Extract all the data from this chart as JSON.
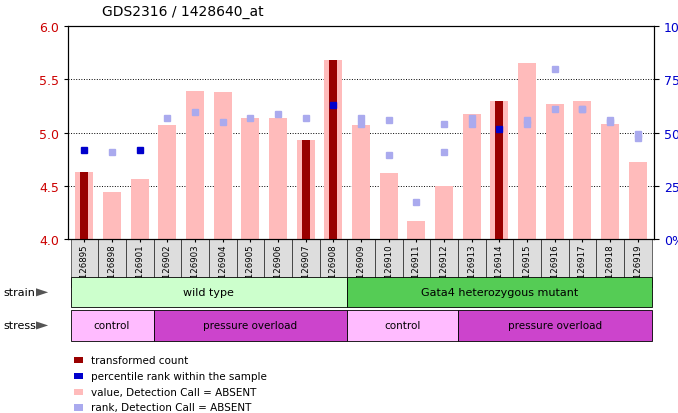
{
  "title": "GDS2316 / 1428640_at",
  "samples": [
    "GSM126895",
    "GSM126898",
    "GSM126901",
    "GSM126902",
    "GSM126903",
    "GSM126904",
    "GSM126905",
    "GSM126906",
    "GSM126907",
    "GSM126908",
    "GSM126909",
    "GSM126910",
    "GSM126911",
    "GSM126912",
    "GSM126913",
    "GSM126914",
    "GSM126915",
    "GSM126916",
    "GSM126917",
    "GSM126918",
    "GSM126919"
  ],
  "bar_values_absent": [
    4.63,
    4.44,
    4.56,
    5.07,
    5.39,
    5.38,
    5.14,
    5.14,
    4.93,
    5.68,
    5.07,
    4.62,
    4.17,
    4.5,
    5.17,
    5.3,
    5.65,
    5.27,
    5.3,
    5.08,
    4.72
  ],
  "bar_transformed": [
    4.63,
    null,
    null,
    null,
    null,
    null,
    null,
    null,
    4.93,
    5.68,
    null,
    null,
    null,
    null,
    null,
    5.3,
    null,
    null,
    null,
    null,
    null
  ],
  "percentile_present": [
    4.84,
    null,
    4.84,
    null,
    null,
    null,
    null,
    null,
    null,
    5.26,
    null,
    null,
    null,
    null,
    null,
    5.03,
    null,
    null,
    null,
    null,
    null
  ],
  "percentile_absent": [
    null,
    4.82,
    null,
    5.14,
    5.19,
    5.1,
    5.14,
    5.17,
    5.14,
    null,
    5.14,
    5.12,
    null,
    5.08,
    5.14,
    null,
    5.12,
    5.6,
    5.22,
    5.12,
    4.95
  ],
  "rank_absent": [
    null,
    null,
    null,
    null,
    null,
    null,
    null,
    null,
    null,
    null,
    5.08,
    4.79,
    4.35,
    4.82,
    5.08,
    null,
    5.08,
    5.22,
    5.22,
    5.1,
    4.99
  ],
  "ylim_left": [
    4.0,
    6.0
  ],
  "ylim_right": [
    0,
    100
  ],
  "yticks_left": [
    4.0,
    4.5,
    5.0,
    5.5,
    6.0
  ],
  "yticks_right": [
    0,
    25,
    50,
    75,
    100
  ],
  "strain_groups": [
    {
      "label": "wild type",
      "start": 0,
      "end": 9,
      "color": "#ccffcc"
    },
    {
      "label": "Gata4 heterozygous mutant",
      "start": 10,
      "end": 20,
      "color": "#55cc55"
    }
  ],
  "stress_groups": [
    {
      "label": "control",
      "start": 0,
      "end": 2,
      "color": "#ffbbff"
    },
    {
      "label": "pressure overload",
      "start": 3,
      "end": 9,
      "color": "#cc44cc"
    },
    {
      "label": "control",
      "start": 10,
      "end": 13,
      "color": "#ffbbff"
    },
    {
      "label": "pressure overload",
      "start": 14,
      "end": 20,
      "color": "#cc44cc"
    }
  ],
  "bar_color_dark_red": "#990000",
  "bar_color_light_pink": "#ffbbbb",
  "dot_color_blue": "#0000cc",
  "dot_color_light_blue": "#aaaaee",
  "tick_label_color_left": "#cc0000",
  "tick_label_color_right": "#0000cc",
  "legend_items": [
    {
      "color": "#990000",
      "label": "transformed count",
      "marker": "s"
    },
    {
      "color": "#0000cc",
      "label": "percentile rank within the sample",
      "marker": "s"
    },
    {
      "color": "#ffbbbb",
      "label": "value, Detection Call = ABSENT",
      "marker": "s"
    },
    {
      "color": "#aaaaee",
      "label": "rank, Detection Call = ABSENT",
      "marker": "s"
    }
  ]
}
